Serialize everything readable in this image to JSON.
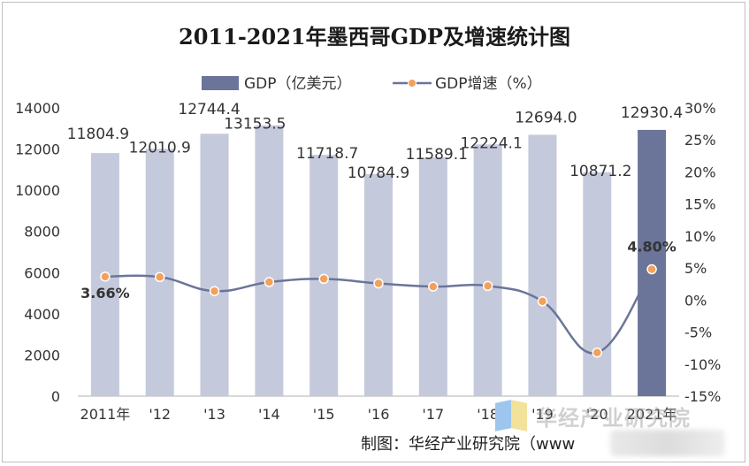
{
  "chart_data": {
    "type": "bar+line",
    "title": "2011-2021年墨西哥GDP及增速统计图",
    "categories": [
      "2011年",
      "'12",
      "'13",
      "'14",
      "'15",
      "'16",
      "'17",
      "'18",
      "'19",
      "'20",
      "2021年"
    ],
    "series": [
      {
        "name": "GDP（亿美元）",
        "type": "bar",
        "axis": "left",
        "values": [
          11804.9,
          12010.9,
          12744.4,
          13153.5,
          11718.7,
          10784.9,
          11589.1,
          12224.1,
          12694.0,
          10871.2,
          12930.4
        ],
        "labels": [
          "11804.9",
          "12010.9",
          "12744.4",
          "13153.5",
          "11718.7",
          "10784.9",
          "11589.1",
          "12224.1",
          "12694.0",
          "10871.2",
          "12930.4"
        ],
        "color": "#c5c9dc",
        "highlight_color": "#6b7599"
      },
      {
        "name": "GDP增速（%）",
        "type": "line",
        "axis": "right",
        "values": [
          3.66,
          3.6,
          1.4,
          2.8,
          3.3,
          2.6,
          2.1,
          2.2,
          -0.2,
          -8.2,
          4.8
        ],
        "labels": [
          "3.66%",
          "",
          "",
          "",
          "",
          "",
          "",
          "",
          "",
          "",
          "4.80%"
        ],
        "line_color": "#6b7599",
        "marker_color": "#f5a05a"
      }
    ],
    "y_left": {
      "min": 0,
      "max": 14000,
      "ticks": [
        "0",
        "2000",
        "4000",
        "6000",
        "8000",
        "10000",
        "12000",
        "14000"
      ]
    },
    "y_right": {
      "min": -15,
      "max": 30,
      "ticks": [
        "-15%",
        "-10%",
        "-5%",
        "0%",
        "5%",
        "10%",
        "15%",
        "20%",
        "25%",
        "30%"
      ]
    },
    "legend_position": "top-center"
  },
  "source": "制图：华经产业研究院（www",
  "watermark": "华经产业研究院"
}
